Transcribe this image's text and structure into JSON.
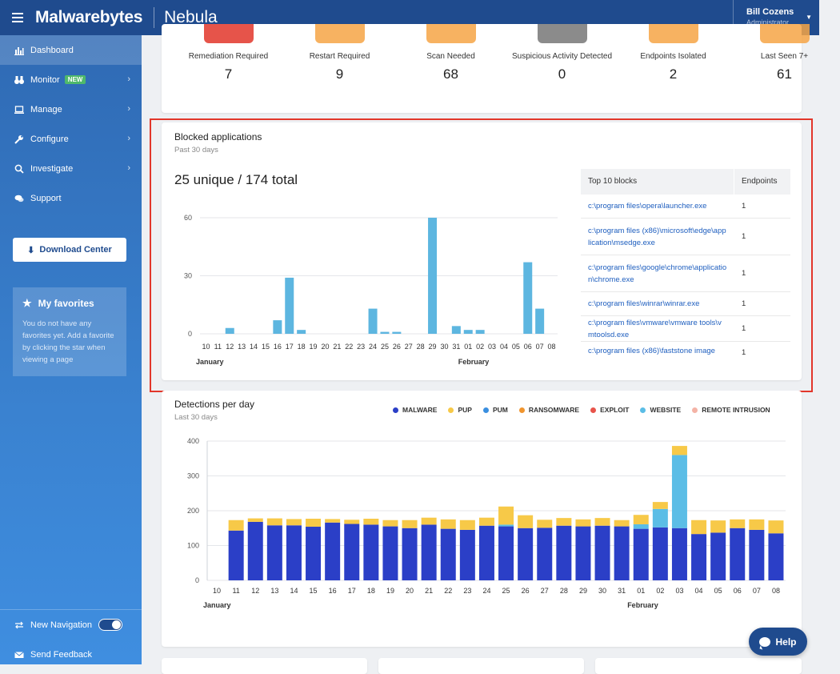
{
  "header": {
    "brand": "Malwarebytes",
    "product": "Nebula",
    "user_name": "Bill Cozens",
    "user_role": "Administrator"
  },
  "sidebar": {
    "items": [
      {
        "label": "Dashboard",
        "icon": "bar-chart-icon",
        "active": true
      },
      {
        "label": "Monitor",
        "icon": "binoculars-icon",
        "badge": "NEW",
        "chevron": true
      },
      {
        "label": "Manage",
        "icon": "laptop-icon",
        "chevron": true
      },
      {
        "label": "Configure",
        "icon": "wrench-icon",
        "chevron": true
      },
      {
        "label": "Investigate",
        "icon": "search-icon",
        "chevron": true
      },
      {
        "label": "Support",
        "icon": "chat-icon"
      }
    ],
    "download_label": "Download Center",
    "favorites_title": "My favorites",
    "favorites_text": "You do not have any favorites yet. Add a favorite by clicking the star when viewing a page",
    "new_navigation_label": "New Navigation",
    "send_feedback_label": "Send Feedback"
  },
  "status_row": [
    {
      "label": "Remediation Required",
      "value": "7",
      "color": "#e2362a"
    },
    {
      "label": "Restart Required",
      "value": "9",
      "color": "#f6a545"
    },
    {
      "label": "Scan Needed",
      "value": "68",
      "color": "#f6a545"
    },
    {
      "label": "Suspicious Activity Detected",
      "value": "0",
      "color": "#777777"
    },
    {
      "label": "Endpoints Isolated",
      "value": "2",
      "color": "#f6a545"
    },
    {
      "label": "Last Seen 7+",
      "value": "61",
      "color": "#f6a545"
    }
  ],
  "blocked": {
    "title": "Blocked applications",
    "subtitle": "Past 30 days",
    "summary": "25 unique / 174 total",
    "table": {
      "col1": "Top 10 blocks",
      "col2": "Endpoints",
      "rows": [
        {
          "path": "c:\\program files\\opera\\launcher.exe",
          "count": "1"
        },
        {
          "path": "c:\\program files (x86)\\microsoft\\edge\\application\\msedge.exe",
          "count": "1"
        },
        {
          "path": "c:\\program files\\google\\chrome\\application\\chrome.exe",
          "count": "1"
        },
        {
          "path": "c:\\program files\\winrar\\winrar.exe",
          "count": "1"
        },
        {
          "path": "c:\\program files\\vmware\\vmware tools\\vmtoolsd.exe",
          "count": "1"
        },
        {
          "path": "c:\\program files (x86)\\faststone image",
          "count": "1"
        }
      ]
    }
  },
  "detections": {
    "title": "Detections per day",
    "subtitle": "Last 30 days",
    "legend": [
      {
        "label": "MALWARE",
        "color": "#2b3fc7"
      },
      {
        "label": "PUP",
        "color": "#f7c948"
      },
      {
        "label": "PUM",
        "color": "#3a8fe0"
      },
      {
        "label": "RANSOMWARE",
        "color": "#f0952e"
      },
      {
        "label": "EXPLOIT",
        "color": "#e8544b"
      },
      {
        "label": "WEBSITE",
        "color": "#5bbde6"
      },
      {
        "label": "REMOTE INTRUSION",
        "color": "#f4b3a6"
      }
    ]
  },
  "help_label": "Help",
  "chart_data": [
    {
      "type": "bar",
      "title": "",
      "categories": [
        "10",
        "11",
        "12",
        "13",
        "14",
        "15",
        "16",
        "17",
        "18",
        "19",
        "20",
        "21",
        "22",
        "23",
        "24",
        "25",
        "26",
        "27",
        "28",
        "29",
        "30",
        "31",
        "01",
        "02",
        "03",
        "04",
        "05",
        "06",
        "07",
        "08"
      ],
      "month_labels": [
        {
          "label": "January",
          "at": "10"
        },
        {
          "label": "February",
          "at": "01"
        }
      ],
      "values": [
        0,
        0,
        3,
        0,
        0,
        0,
        7,
        29,
        2,
        0,
        0,
        0,
        0,
        0,
        13,
        1,
        1,
        0,
        0,
        60,
        0,
        4,
        2,
        2,
        0,
        0,
        0,
        37,
        13,
        0
      ],
      "ylim": [
        0,
        60
      ],
      "yticks": [
        0,
        30,
        60
      ],
      "color": "#5db6e0"
    },
    {
      "type": "bar",
      "stacked": true,
      "title": "",
      "categories": [
        "10",
        "11",
        "12",
        "13",
        "14",
        "15",
        "16",
        "17",
        "18",
        "19",
        "20",
        "21",
        "22",
        "23",
        "24",
        "25",
        "26",
        "27",
        "28",
        "29",
        "30",
        "31",
        "01",
        "02",
        "03",
        "04",
        "05",
        "06",
        "07",
        "08"
      ],
      "month_labels": [
        {
          "label": "January",
          "at": "10"
        },
        {
          "label": "February",
          "at": "01"
        }
      ],
      "ylim": [
        0,
        400
      ],
      "yticks": [
        0,
        100,
        200,
        300,
        400
      ],
      "series": [
        {
          "name": "MALWARE",
          "color": "#2b3fc7",
          "values": [
            0,
            143,
            168,
            158,
            158,
            154,
            166,
            162,
            160,
            155,
            150,
            160,
            148,
            145,
            157,
            155,
            150,
            151,
            157,
            155,
            157,
            155,
            148,
            152,
            150,
            133,
            137,
            150,
            145,
            135
          ]
        },
        {
          "name": "WEBSITE",
          "color": "#5bbde6",
          "values": [
            0,
            0,
            0,
            0,
            0,
            0,
            0,
            0,
            0,
            0,
            0,
            0,
            0,
            0,
            0,
            5,
            0,
            0,
            0,
            0,
            0,
            0,
            13,
            53,
            210,
            0,
            0,
            0,
            0,
            0
          ]
        },
        {
          "name": "PUP",
          "color": "#f7c948",
          "values": [
            0,
            30,
            10,
            20,
            18,
            23,
            10,
            12,
            17,
            18,
            23,
            20,
            27,
            28,
            23,
            52,
            37,
            23,
            22,
            20,
            22,
            18,
            27,
            20,
            26,
            40,
            35,
            25,
            30,
            37
          ]
        }
      ]
    }
  ]
}
